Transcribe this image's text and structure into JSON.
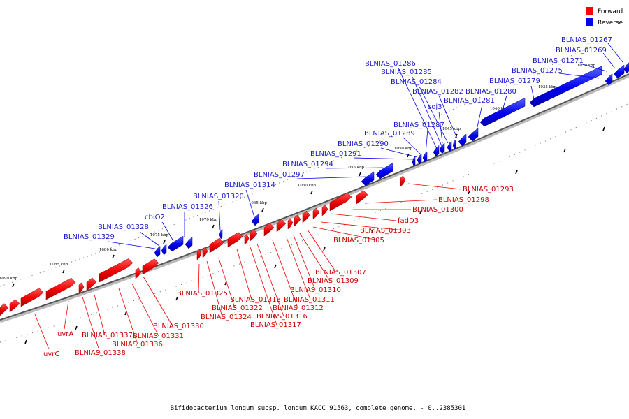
{
  "legend": {
    "items": [
      {
        "label": "Forward",
        "color": "#ff0000"
      },
      {
        "label": "Reverse",
        "color": "#0000ff"
      }
    ]
  },
  "caption": "Bifidobacterium longum subsp. longum KACC 91563, complete genome. - 0..2385301",
  "colors": {
    "forward": "#ff0000",
    "reverse": "#0000ff",
    "forward_label": "#cc0000",
    "reverse_label": "#1a1acc"
  },
  "ticks": [
    "1030 kbp",
    "1035 kbp",
    "1040 kbp",
    "1045 kbp",
    "1050 kbp",
    "1055 kbp",
    "1060 kbp",
    "1065 kbp",
    "1070 kbp",
    "1075 kbp",
    "1080 kbp",
    "1085 kbp",
    "1090 kbp"
  ],
  "reverse_labels": [
    "BLNIAS_01267",
    "BLNIAS_01269",
    "BLNIAS_01271",
    "BLNIAS_01275",
    "BLNIAS_01279",
    "BLNIAS_01280",
    "BLNIAS_01281",
    "BLNIAS_01282",
    "BLNIAS_01284",
    "BLNIAS_01285",
    "BLNIAS_01286",
    "soj3",
    "BLNIAS_01287",
    "BLNIAS_01289",
    "BLNIAS_01290",
    "BLNIAS_01291",
    "BLNIAS_01294",
    "BLNIAS_01297",
    "BLNIAS_01314",
    "BLNIAS_01320",
    "BLNIAS_01326",
    "cbiO2",
    "BLNIAS_01328",
    "BLNIAS_01329"
  ],
  "forward_labels": [
    "BLNIAS_01293",
    "BLNIAS_01298",
    "BLNIAS_01300",
    "fadD3",
    "BLNIAS_01303",
    "BLNIAS_01305",
    "BLNIAS_01307",
    "BLNIAS_01309",
    "BLNIAS_01310",
    "BLNIAS_01311",
    "BLNIAS_01312",
    "BLNIAS_01316",
    "BLNIAS_01317",
    "BLNIAS_01318",
    "BLNIAS_01322",
    "BLNIAS_01324",
    "BLNIAS_01325",
    "BLNIAS_01330",
    "BLNIAS_01331",
    "BLNIAS_01336",
    "BLNIAS_01337",
    "BLNIAS_01338",
    "uvrA",
    "uvrC"
  ]
}
